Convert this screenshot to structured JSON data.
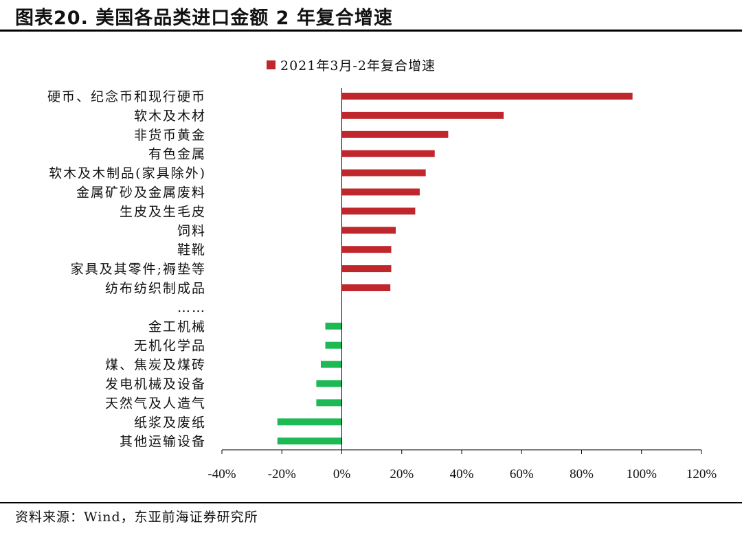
{
  "header": {
    "title": "图表20. 美国各品类进口金额 2 年复合增速"
  },
  "footer": {
    "source": "资料来源：Wind，东亚前海证券研究所"
  },
  "colors": {
    "positive": "#c0272d",
    "negative": "#1db954",
    "axis": "#000000"
  },
  "chart_data": {
    "type": "bar",
    "orientation": "horizontal",
    "title": "",
    "legend": {
      "label": "2021年3月-2年复合增速",
      "placement": "top-center"
    },
    "categories": [
      "硬币、纪念币和现行硬币",
      "软木及木材",
      "非货币黄金",
      "有色金属",
      "软木及木制品(家具除外)",
      "金属矿砂及金属废料",
      "生皮及生毛皮",
      "饲料",
      "鞋靴",
      "家具及其零件;褥垫等",
      "纺布纺织制成品",
      "……",
      "金工机械",
      "无机化学品",
      "煤、焦炭及煤砖",
      "发电机械及设备",
      "天然气及人造气",
      "纸浆及废纸",
      "其他运输设备"
    ],
    "values": [
      97,
      54,
      35.5,
      31,
      28,
      26,
      24.5,
      18,
      16.5,
      16.5,
      16.2,
      null,
      -5.5,
      -5.5,
      -7,
      -8.5,
      -8.5,
      -21.5,
      -21.5
    ],
    "xlim": [
      -40,
      120
    ],
    "xticks": [
      -40,
      -20,
      0,
      20,
      40,
      60,
      80,
      100,
      120
    ],
    "xtick_labels": [
      "-40%",
      "-20%",
      "0%",
      "20%",
      "40%",
      "60%",
      "80%",
      "100%",
      "120%"
    ]
  }
}
